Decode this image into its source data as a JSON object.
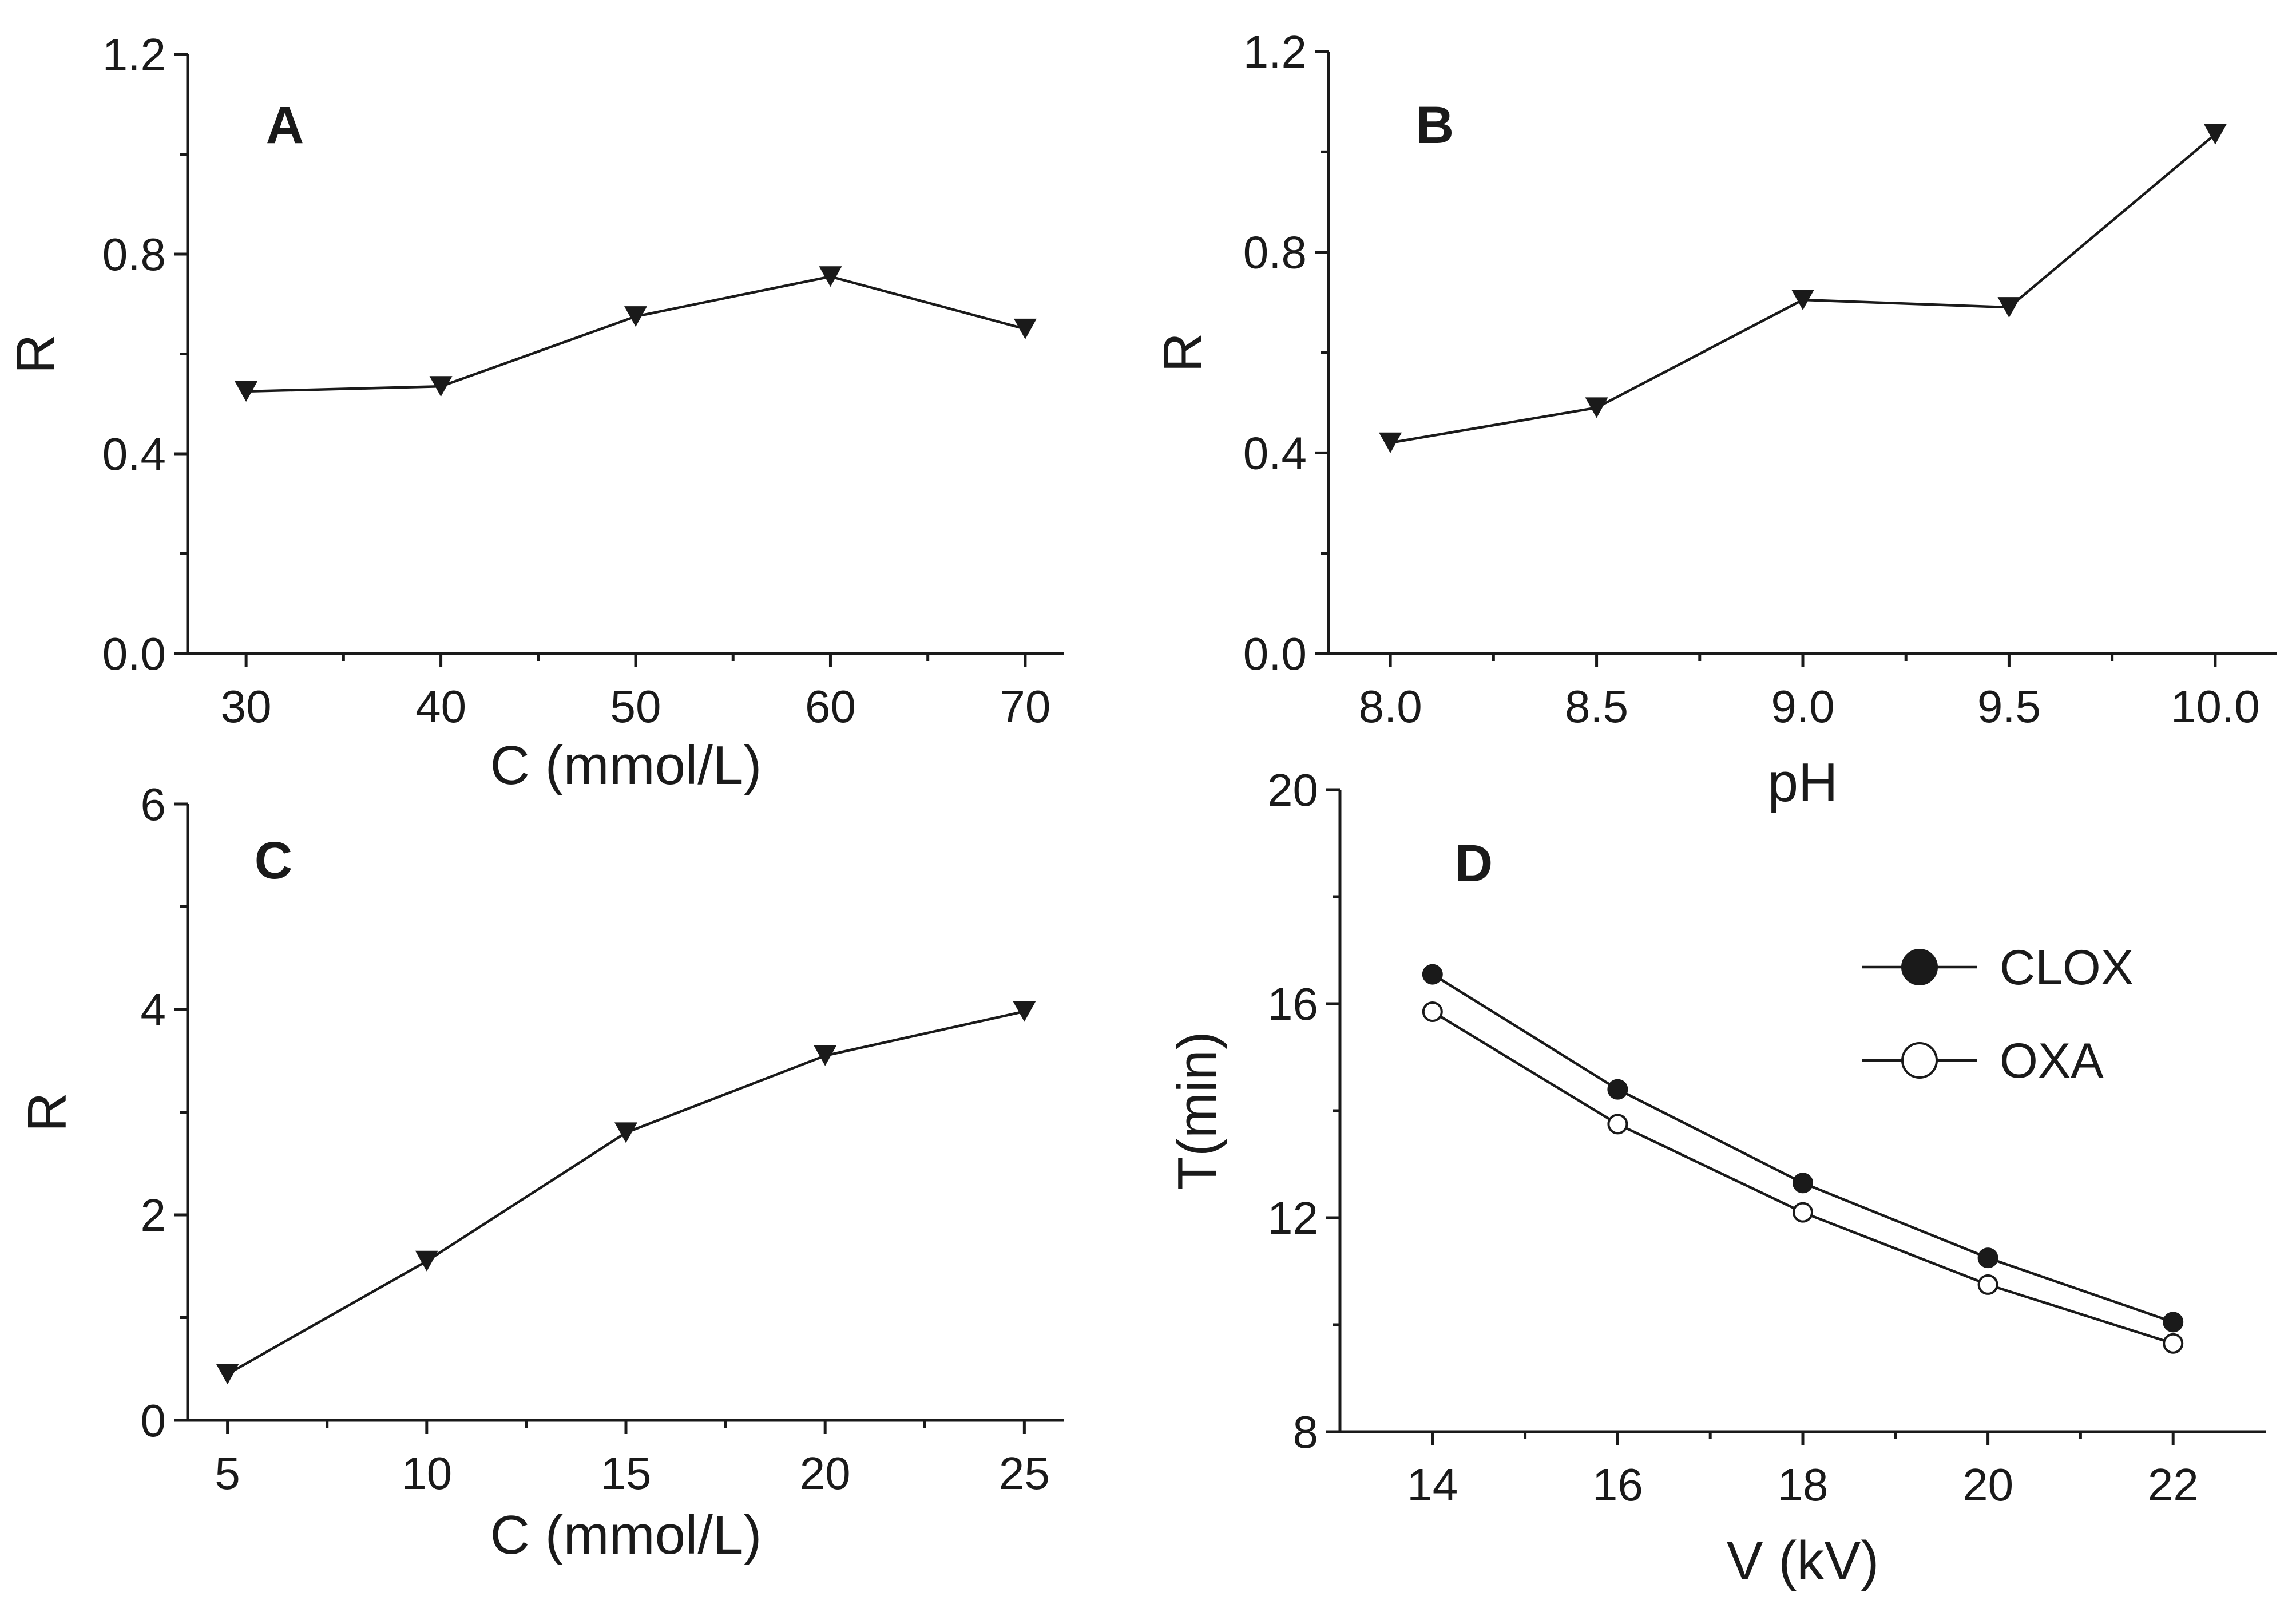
{
  "chart_data": [
    {
      "panel": "A",
      "type": "line",
      "marker": "triangle-down",
      "xlabel": "C (mmol/L)",
      "ylabel": "R",
      "xlim": [
        27,
        72
      ],
      "ylim": [
        0,
        1.2
      ],
      "xticks": [
        30,
        40,
        50,
        60,
        70
      ],
      "xminor": [
        35,
        45,
        55,
        65
      ],
      "yticks": [
        0.0,
        0.4,
        0.8,
        1.2
      ],
      "yminor": [
        0.2,
        0.6,
        1.0
      ],
      "xtick_labels": [
        "30",
        "40",
        "50",
        "60",
        "70"
      ],
      "ytick_labels": [
        "0.0",
        "0.4",
        "0.8",
        "1.2"
      ],
      "series": [
        {
          "name": "R",
          "x": [
            30,
            40,
            50,
            60,
            70
          ],
          "values": [
            0.525,
            0.535,
            0.675,
            0.755,
            0.65
          ],
          "filled": true
        }
      ]
    },
    {
      "panel": "B",
      "type": "line",
      "marker": "triangle-down",
      "xlabel": "pH",
      "ylabel": "R",
      "xlim": [
        7.85,
        10.15
      ],
      "ylim": [
        0,
        1.2
      ],
      "xticks": [
        8.0,
        8.5,
        9.0,
        9.5,
        10.0
      ],
      "xminor": [
        8.25,
        8.75,
        9.25,
        9.75
      ],
      "yticks": [
        0.0,
        0.4,
        0.8,
        1.2
      ],
      "yminor": [
        0.2,
        0.6,
        1.0
      ],
      "xtick_labels": [
        "8.0",
        "8.5",
        "9.0",
        "9.5",
        "10.0"
      ],
      "ytick_labels": [
        "0.0",
        "0.4",
        "0.8",
        "1.2"
      ],
      "series": [
        {
          "name": "R",
          "x": [
            8.0,
            8.5,
            9.0,
            9.5,
            10.0
          ],
          "values": [
            0.42,
            0.49,
            0.705,
            0.69,
            1.035
          ],
          "filled": true
        }
      ]
    },
    {
      "panel": "C",
      "type": "line",
      "marker": "triangle-down",
      "xlabel": "C (mmol/L)",
      "ylabel": "R",
      "xlim": [
        4,
        26
      ],
      "ylim": [
        0,
        6
      ],
      "xticks": [
        5,
        10,
        15,
        20,
        25
      ],
      "xminor": [
        7.5,
        12.5,
        17.5,
        22.5
      ],
      "yticks": [
        0,
        2,
        4,
        6
      ],
      "yminor": [
        1,
        3,
        5
      ],
      "xtick_labels": [
        "5",
        "10",
        "15",
        "20",
        "25"
      ],
      "ytick_labels": [
        "0",
        "2",
        "4",
        "6"
      ],
      "series": [
        {
          "name": "R",
          "x": [
            5,
            10,
            15,
            20,
            25
          ],
          "values": [
            0.45,
            1.55,
            2.8,
            3.55,
            3.98
          ],
          "filled": true
        }
      ]
    },
    {
      "panel": "D",
      "type": "line",
      "marker": "circle",
      "xlabel": "V (kV)",
      "ylabel": "T(min)",
      "xlim": [
        13.0,
        23.0
      ],
      "ylim": [
        8,
        20
      ],
      "xticks": [
        14,
        16,
        18,
        20,
        22
      ],
      "xminor": [
        15,
        17,
        19,
        21
      ],
      "yticks": [
        8,
        12,
        16,
        20
      ],
      "yminor": [
        10,
        14,
        18
      ],
      "xtick_labels": [
        "14",
        "16",
        "18",
        "20",
        "22"
      ],
      "ytick_labels": [
        "8",
        "12",
        "16",
        "20"
      ],
      "legend": "top-right",
      "series": [
        {
          "name": "CLOX",
          "x": [
            14,
            16,
            18,
            20,
            22
          ],
          "values": [
            16.55,
            14.4,
            12.65,
            11.25,
            10.05
          ],
          "filled": true
        },
        {
          "name": "OXA",
          "x": [
            14,
            16,
            18,
            20,
            22
          ],
          "values": [
            15.85,
            13.75,
            12.1,
            10.75,
            9.65
          ],
          "filled": false
        }
      ]
    }
  ]
}
